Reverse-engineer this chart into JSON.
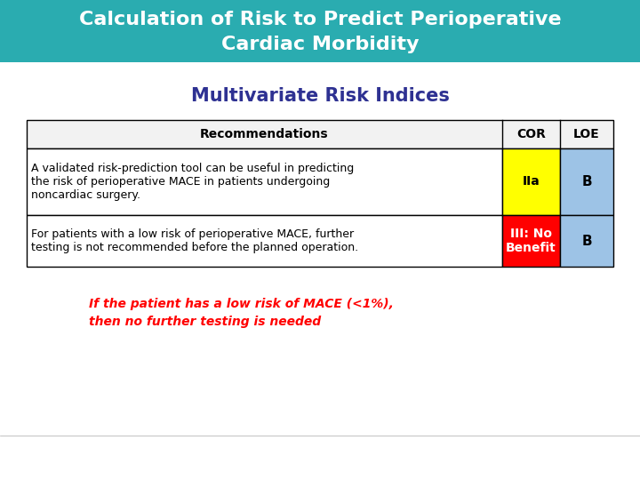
{
  "title_line1": "Calculation of Risk to Predict Perioperative",
  "title_line2": "Cardiac Morbidity",
  "title_bg_color": "#2AACB0",
  "title_text_color": "#FFFFFF",
  "subtitle": "Multivariate Risk Indices",
  "subtitle_color": "#2E3192",
  "table_header": [
    "Recommendations",
    "COR",
    "LOE"
  ],
  "table_rows": [
    {
      "recommendation": "A validated risk-prediction tool can be useful in predicting\nthe risk of perioperative MACE in patients undergoing\nnoncardiac surgery.",
      "cor": "IIa",
      "cor_color": "#FFFF00",
      "cor_text_color": "#000000",
      "loe": "B",
      "loe_color": "#9DC3E6",
      "loe_text_color": "#000000"
    },
    {
      "recommendation": "For patients with a low risk of perioperative MACE, further\ntesting is not recommended before the planned operation.",
      "cor": "III: No\nBenefit",
      "cor_color": "#FF0000",
      "cor_text_color": "#FFFFFF",
      "loe": "B",
      "loe_color": "#9DC3E6",
      "loe_text_color": "#000000"
    }
  ],
  "annotation_line1": "If the patient has a low risk of MACE (<1%),",
  "annotation_line2": "then no further testing is needed",
  "annotation_color": "#FF0000",
  "bg_color": "#FFFFFF",
  "border_color": "#000000"
}
